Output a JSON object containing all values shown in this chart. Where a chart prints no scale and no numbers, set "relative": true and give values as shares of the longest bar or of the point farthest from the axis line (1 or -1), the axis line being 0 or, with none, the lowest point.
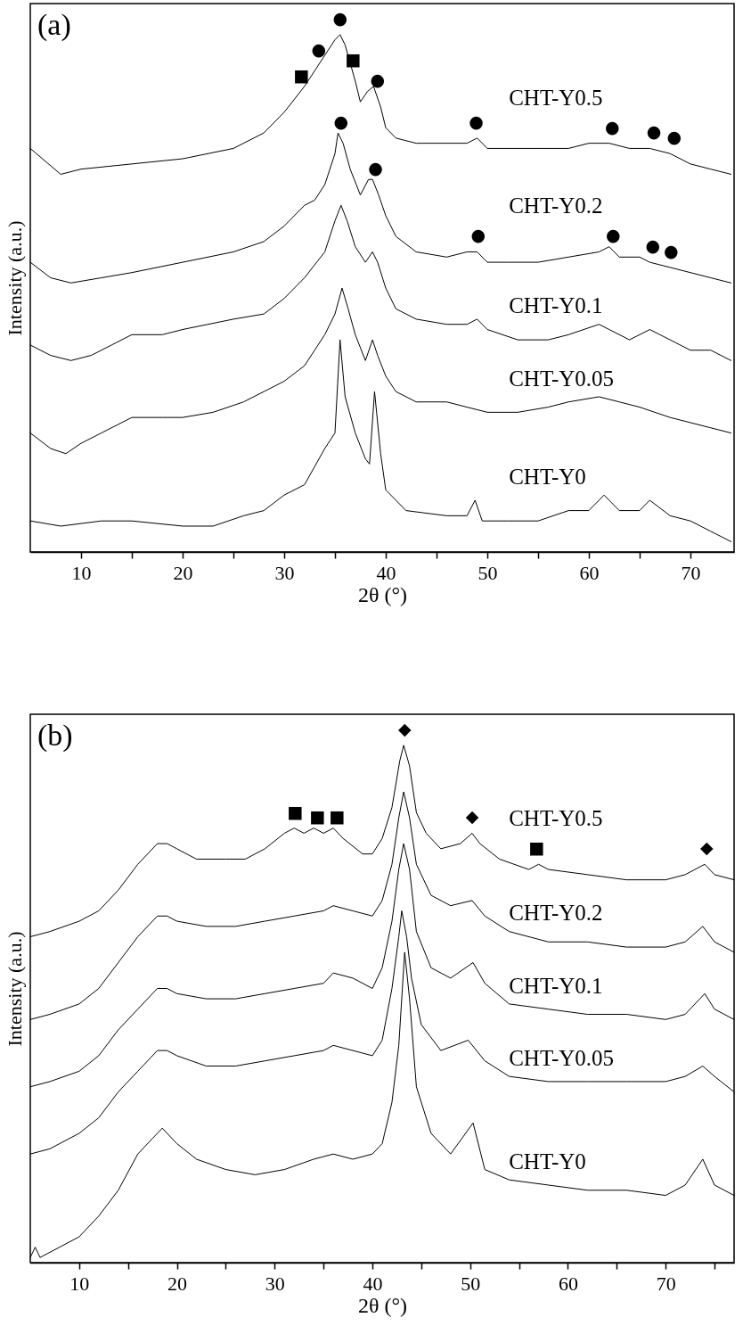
{
  "chart_data": [
    {
      "type": "line",
      "title": "(a)",
      "xlabel": "2θ (°)",
      "ylabel": "Intensity (a.u.)",
      "relative": true,
      "tick_labels": "x",
      "marker": "none",
      "line_style": "solid",
      "xlim": [
        5,
        74.3
      ],
      "xticks": [
        10,
        {
          "value": 15,
          "label": null
        },
        20,
        {
          "value": 25,
          "label": null
        },
        30,
        {
          "value": 35,
          "label": null
        },
        40,
        {
          "value": 45,
          "label": null
        },
        50,
        {
          "value": 55,
          "label": null
        },
        60,
        {
          "value": 65,
          "label": null
        },
        70
      ],
      "series": [
        {
          "name": "CHT-Y0.5",
          "color": "#000000",
          "x": [
            5,
            8,
            10,
            15,
            20,
            25,
            28,
            30,
            32,
            33,
            34,
            35,
            35.5,
            36,
            37,
            37.5,
            38.2,
            38.8,
            39.5,
            40,
            41,
            43,
            45,
            48,
            49,
            50,
            55,
            58,
            60,
            62,
            64,
            66,
            68,
            70,
            72,
            74
          ],
          "values": [
            0.78,
            0.73,
            0.74,
            0.75,
            0.76,
            0.78,
            0.81,
            0.85,
            0.9,
            0.93,
            0.96,
            0.99,
            1,
            0.98,
            0.91,
            0.87,
            0.89,
            0.9,
            0.86,
            0.82,
            0.8,
            0.79,
            0.79,
            0.79,
            0.8,
            0.78,
            0.78,
            0.78,
            0.79,
            0.79,
            0.78,
            0.78,
            0.77,
            0.75,
            0.74,
            0.73
          ]
        },
        {
          "name": "CHT-Y0.2",
          "color": "#000000",
          "x": [
            5,
            7,
            9,
            12,
            15,
            20,
            25,
            28,
            30,
            32,
            33,
            34,
            35,
            35.3,
            35.8,
            36.5,
            37.5,
            38.3,
            38.7,
            39.3,
            40,
            41,
            43,
            46,
            48,
            49,
            50,
            52,
            55,
            58,
            61,
            62,
            63,
            65,
            66,
            68,
            70,
            72,
            74
          ],
          "values": [
            0.56,
            0.53,
            0.52,
            0.53,
            0.54,
            0.56,
            0.58,
            0.6,
            0.63,
            0.67,
            0.68,
            0.71,
            0.77,
            0.81,
            0.79,
            0.74,
            0.69,
            0.72,
            0.72,
            0.69,
            0.65,
            0.61,
            0.58,
            0.57,
            0.58,
            0.58,
            0.56,
            0.56,
            0.56,
            0.57,
            0.58,
            0.59,
            0.57,
            0.57,
            0.56,
            0.55,
            0.54,
            0.53,
            0.52
          ]
        },
        {
          "name": "CHT-Y0.1",
          "color": "#000000",
          "x": [
            5,
            7,
            9,
            11,
            13,
            15,
            18,
            20,
            25,
            28,
            30,
            32,
            34,
            35,
            35.6,
            36.2,
            37,
            38,
            38.7,
            39.2,
            40,
            41,
            43,
            46,
            48,
            49,
            50,
            53,
            56,
            58,
            61,
            62,
            64,
            66,
            68,
            70,
            72,
            74
          ],
          "values": [
            0.4,
            0.38,
            0.37,
            0.38,
            0.4,
            0.42,
            0.42,
            0.43,
            0.45,
            0.46,
            0.49,
            0.53,
            0.58,
            0.64,
            0.67,
            0.64,
            0.59,
            0.56,
            0.58,
            0.56,
            0.51,
            0.47,
            0.45,
            0.44,
            0.44,
            0.45,
            0.43,
            0.41,
            0.41,
            0.42,
            0.44,
            0.43,
            0.41,
            0.43,
            0.41,
            0.39,
            0.39,
            0.37
          ]
        },
        {
          "name": "CHT-Y0.05",
          "color": "#000000",
          "x": [
            5,
            7,
            8.5,
            10,
            12,
            15,
            18,
            20,
            23,
            26,
            28,
            30,
            32,
            34,
            35,
            35.7,
            36.3,
            37,
            38,
            38.7,
            39.2,
            40,
            41,
            43,
            46,
            48,
            50,
            53,
            56,
            58,
            61,
            63,
            65,
            68,
            70,
            72,
            74
          ],
          "values": [
            0.23,
            0.2,
            0.19,
            0.21,
            0.23,
            0.26,
            0.26,
            0.26,
            0.27,
            0.29,
            0.31,
            0.33,
            0.36,
            0.42,
            0.46,
            0.51,
            0.47,
            0.42,
            0.37,
            0.41,
            0.38,
            0.34,
            0.31,
            0.29,
            0.29,
            0.28,
            0.27,
            0.27,
            0.28,
            0.29,
            0.3,
            0.29,
            0.28,
            0.26,
            0.25,
            0.24,
            0.23
          ]
        },
        {
          "name": "CHT-Y0",
          "color": "#000000",
          "x": [
            5,
            8,
            12,
            15,
            20,
            23,
            26,
            28,
            30,
            32,
            34,
            35,
            35.5,
            36,
            37,
            38,
            38.4,
            38.9,
            39.5,
            40,
            42,
            46,
            48,
            48.8,
            49.5,
            52,
            55,
            58,
            60,
            61.5,
            63,
            65,
            66,
            68,
            70,
            72,
            74
          ],
          "values": [
            0.06,
            0.05,
            0.06,
            0.06,
            0.05,
            0.05,
            0.07,
            0.08,
            0.11,
            0.13,
            0.2,
            0.23,
            0.41,
            0.3,
            0.23,
            0.18,
            0.17,
            0.31,
            0.19,
            0.12,
            0.08,
            0.07,
            0.07,
            0.1,
            0.06,
            0.06,
            0.06,
            0.08,
            0.08,
            0.11,
            0.08,
            0.08,
            0.1,
            0.07,
            0.06,
            0.04,
            0.02
          ]
        }
      ],
      "annotations": [
        {
          "text": "●",
          "x": 35.5,
          "y": 1
        },
        {
          "text": "■",
          "x": 36.8,
          "y": 0.92
        },
        {
          "text": "■",
          "x": 31.7,
          "y": 0.89
        },
        {
          "text": "●",
          "x": 33.4,
          "y": 0.94
        },
        {
          "text": "●",
          "x": 39.2,
          "y": 0.88
        },
        {
          "text": "●",
          "x": 48.9,
          "y": 0.8
        },
        {
          "text": "●",
          "x": 62.3,
          "y": 0.79
        },
        {
          "text": "●",
          "x": 66.4,
          "y": 0.78
        },
        {
          "text": "●",
          "x": 68.4,
          "y": 0.77
        },
        {
          "text": "●",
          "x": 35.6,
          "y": 0.8
        },
        {
          "text": "●",
          "x": 39,
          "y": 0.71
        },
        {
          "text": "●",
          "x": 49.1,
          "y": 0.58
        },
        {
          "text": "●",
          "x": 62.4,
          "y": 0.58
        },
        {
          "text": "●",
          "x": 66.3,
          "y": 0.56
        },
        {
          "text": "●",
          "x": 68.1,
          "y": 0.55
        }
      ]
    },
    {
      "type": "line",
      "title": "(b)",
      "xlabel": "2θ (°)",
      "ylabel": "Intensity (a.u.)",
      "relative": true,
      "tick_labels": "x",
      "marker": "none",
      "line_style": "solid",
      "xlim": [
        5,
        77
      ],
      "xticks": [
        10,
        {
          "value": 15,
          "label": null
        },
        20,
        {
          "value": 25,
          "label": null
        },
        30,
        {
          "value": 35,
          "label": null
        },
        40,
        {
          "value": 45,
          "label": null
        },
        50,
        {
          "value": 55,
          "label": null
        },
        60,
        {
          "value": 65,
          "label": null
        },
        70,
        {
          "value": 75,
          "label": null
        }
      ],
      "series": [
        {
          "name": "CHT-Y0.5",
          "color": "#000000",
          "x": [
            5,
            7,
            10,
            12,
            14,
            16,
            18,
            19,
            20,
            22,
            25,
            27,
            29,
            31,
            32,
            33,
            34,
            35,
            36,
            37,
            39,
            40,
            41,
            42,
            42.8,
            43.2,
            43.8,
            44.5,
            45.5,
            47,
            49,
            50.2,
            51,
            53,
            56,
            57,
            58,
            62,
            66,
            70,
            72,
            74,
            75,
            77
          ],
          "values": [
            0.63,
            0.64,
            0.66,
            0.68,
            0.72,
            0.77,
            0.81,
            0.81,
            0.8,
            0.78,
            0.78,
            0.78,
            0.8,
            0.83,
            0.84,
            0.83,
            0.84,
            0.83,
            0.84,
            0.82,
            0.79,
            0.79,
            0.82,
            0.88,
            0.97,
            1,
            0.96,
            0.87,
            0.83,
            0.8,
            0.81,
            0.83,
            0.81,
            0.78,
            0.76,
            0.77,
            0.76,
            0.75,
            0.74,
            0.74,
            0.75,
            0.77,
            0.75,
            0.74
          ]
        },
        {
          "name": "CHT-Y0.2",
          "color": "#000000",
          "x": [
            5,
            7,
            10,
            12,
            14,
            16,
            18,
            19,
            20,
            23,
            26,
            29,
            32,
            35,
            36,
            38,
            40,
            41,
            42,
            42.7,
            43.2,
            43.8,
            44.5,
            46,
            48,
            50.2,
            51.5,
            54,
            58,
            62,
            66,
            70,
            72,
            73.8,
            75,
            77
          ],
          "values": [
            0.47,
            0.48,
            0.5,
            0.53,
            0.58,
            0.63,
            0.67,
            0.67,
            0.66,
            0.65,
            0.65,
            0.66,
            0.67,
            0.68,
            0.69,
            0.68,
            0.67,
            0.7,
            0.77,
            0.86,
            0.91,
            0.86,
            0.77,
            0.71,
            0.69,
            0.7,
            0.67,
            0.64,
            0.62,
            0.62,
            0.61,
            0.61,
            0.62,
            0.65,
            0.62,
            0.6
          ]
        },
        {
          "name": "CHT-Y0.1",
          "color": "#000000",
          "x": [
            5,
            7,
            10,
            12,
            14,
            16,
            18,
            19,
            20,
            23,
            26,
            29,
            32,
            35,
            36,
            38,
            40,
            41,
            42,
            42.7,
            43.2,
            43.8,
            44.5,
            46,
            48,
            50.3,
            51.5,
            54,
            58,
            62,
            66,
            70,
            72,
            74,
            75,
            77
          ],
          "values": [
            0.34,
            0.35,
            0.37,
            0.4,
            0.45,
            0.49,
            0.53,
            0.53,
            0.52,
            0.51,
            0.51,
            0.52,
            0.53,
            0.54,
            0.56,
            0.55,
            0.53,
            0.57,
            0.66,
            0.76,
            0.81,
            0.76,
            0.64,
            0.57,
            0.55,
            0.58,
            0.54,
            0.5,
            0.49,
            0.48,
            0.48,
            0.47,
            0.48,
            0.52,
            0.49,
            0.47
          ]
        },
        {
          "name": "CHT-Y0.05",
          "color": "#000000",
          "x": [
            5,
            7,
            10,
            12,
            14,
            16,
            18,
            19,
            20,
            23,
            26,
            29,
            32,
            35,
            36,
            38,
            40,
            41,
            42,
            42.7,
            43,
            43.5,
            44,
            45,
            47,
            49.8,
            51.5,
            54,
            58,
            62,
            66,
            70,
            72,
            73.8,
            75,
            77
          ],
          "values": [
            0.21,
            0.22,
            0.25,
            0.28,
            0.33,
            0.37,
            0.41,
            0.41,
            0.4,
            0.38,
            0.38,
            0.39,
            0.4,
            0.41,
            0.42,
            0.41,
            0.4,
            0.43,
            0.53,
            0.63,
            0.68,
            0.63,
            0.55,
            0.46,
            0.41,
            0.43,
            0.39,
            0.36,
            0.35,
            0.35,
            0.35,
            0.35,
            0.36,
            0.38,
            0.36,
            0.33
          ]
        },
        {
          "name": "CHT-Y0",
          "color": "#000000",
          "x": [
            5,
            5.5,
            6,
            8,
            10,
            12,
            14,
            16,
            17.5,
            18.5,
            20,
            22,
            25,
            28,
            31,
            34,
            36,
            38,
            40,
            41,
            42,
            42.7,
            43.3,
            43.8,
            44.5,
            46,
            48,
            50.3,
            51.5,
            54,
            58,
            62,
            66,
            70,
            72,
            73.8,
            75,
            77
          ],
          "values": [
            0.01,
            0.03,
            0.01,
            0.03,
            0.05,
            0.09,
            0.14,
            0.21,
            0.24,
            0.26,
            0.23,
            0.2,
            0.18,
            0.17,
            0.18,
            0.2,
            0.21,
            0.2,
            0.21,
            0.23,
            0.31,
            0.42,
            0.6,
            0.51,
            0.34,
            0.25,
            0.21,
            0.27,
            0.18,
            0.16,
            0.15,
            0.14,
            0.14,
            0.13,
            0.15,
            0.2,
            0.15,
            0.13
          ]
        }
      ],
      "annotations": [
        {
          "text": "◆",
          "x": 43.3,
          "y": 1
        },
        {
          "text": "■",
          "x": 32.1,
          "y": 0.84
        },
        {
          "text": "■",
          "x": 34.4,
          "y": 0.83
        },
        {
          "text": "■",
          "x": 36.4,
          "y": 0.83
        },
        {
          "text": "◆",
          "x": 50.2,
          "y": 0.83
        },
        {
          "text": "■",
          "x": 56.8,
          "y": 0.77
        },
        {
          "text": "◆",
          "x": 74.2,
          "y": 0.77
        }
      ]
    }
  ]
}
